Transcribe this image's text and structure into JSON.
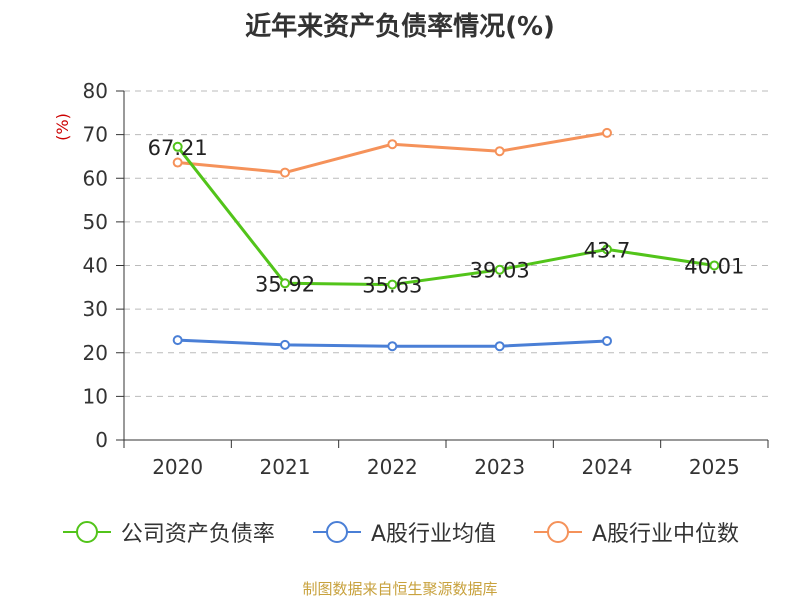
{
  "title": "近年来资产负债率情况(%)",
  "source": "制图数据来自恒生聚源数据库",
  "colors": {
    "company": "#52c41a",
    "industry_avg": "#4a7fd6",
    "industry_median": "#f5925a",
    "axis": "#333333",
    "grid": "#bbbbbb",
    "unit": "#cc0000"
  },
  "chart_data": {
    "type": "line",
    "title": "近年来资产负债率情况(%)",
    "xlabel": "",
    "ylabel": "(%)",
    "categories": [
      "2020",
      "2021",
      "2022",
      "2023",
      "2024",
      "2025"
    ],
    "ylim": [
      0,
      80
    ],
    "yticks": [
      0,
      10,
      20,
      30,
      40,
      50,
      60,
      70,
      80
    ],
    "grid": true,
    "legend_position": "bottom",
    "series": [
      {
        "name": "公司资产负债率",
        "color": "#52c41a",
        "values": [
          67.21,
          35.92,
          35.63,
          39.03,
          43.7,
          40.01
        ],
        "labels": [
          "67.21",
          "35.92",
          "35.63",
          "39.03",
          "43.7",
          "40.01"
        ]
      },
      {
        "name": "A股行业均值",
        "color": "#4a7fd6",
        "values": [
          22.9,
          21.8,
          21.5,
          21.5,
          22.7,
          null
        ]
      },
      {
        "name": "A股行业中位数",
        "color": "#f5925a",
        "values": [
          63.6,
          61.3,
          67.8,
          66.2,
          70.4,
          null
        ]
      }
    ]
  }
}
